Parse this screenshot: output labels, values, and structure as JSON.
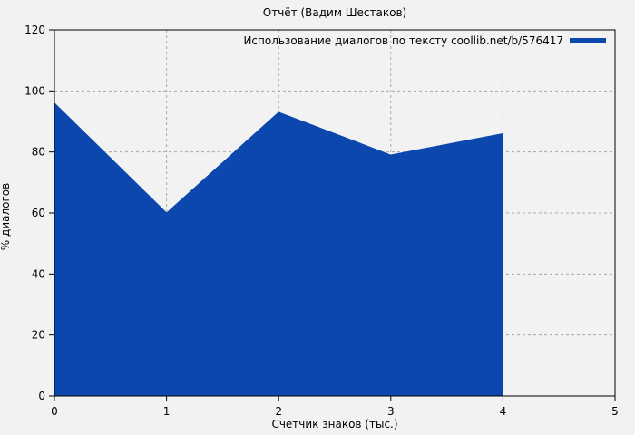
{
  "colors": {
    "background": "#f2f2f2",
    "frame": "#000000",
    "grid": "#a8a8a8"
  },
  "chart_data": {
    "type": "area",
    "title": "Отчёт (Вадим Шестаков)",
    "legend": "Использование диалогов по тексту coollib.net/b/576417",
    "xlabel": "Счетчик знаков (тыс.)",
    "ylabel": "% диалогов",
    "xlim": [
      0,
      5
    ],
    "ylim": [
      0,
      120
    ],
    "xticks": [
      0,
      1,
      2,
      3,
      4,
      5
    ],
    "yticks": [
      0,
      20,
      40,
      60,
      80,
      100,
      120
    ],
    "points": [
      [
        0,
        96
      ],
      [
        1,
        60
      ],
      [
        2,
        93
      ],
      [
        3,
        79
      ],
      [
        4,
        86
      ]
    ],
    "fill_color": "#0b47ad",
    "grid": true,
    "legend_position": "top-right"
  }
}
